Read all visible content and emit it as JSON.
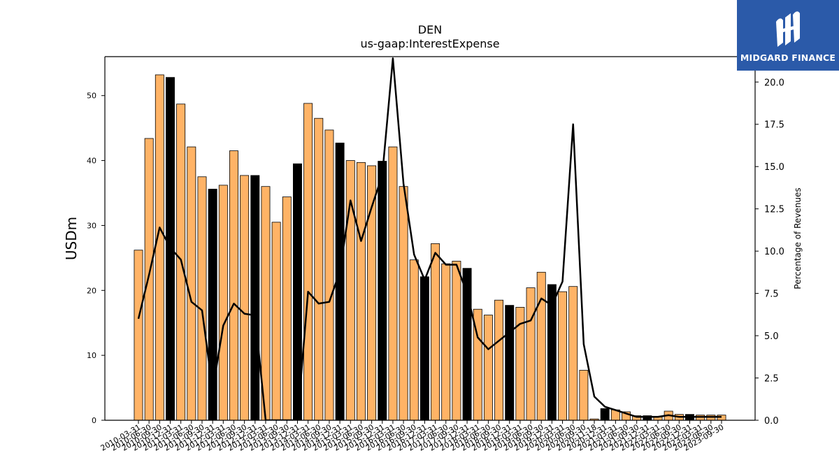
{
  "logo": {
    "text": "MIDGARD FINANCE"
  },
  "chart_data": {
    "type": "bar",
    "title": "DEN",
    "subtitle": "us-gaap:InterestExpense",
    "ylabel": "USDm",
    "y2label": "Percentage of Revenues",
    "ylim": [
      0,
      56
    ],
    "y2lim": [
      0,
      21.5
    ],
    "yticks": [
      0,
      10,
      20,
      30,
      40,
      50
    ],
    "y2ticks": [
      0.0,
      2.5,
      5.0,
      7.5,
      10.0,
      12.5,
      15.0,
      17.5,
      20.0
    ],
    "colors": {
      "bar": "#ffb366",
      "bar_q4": "#000000",
      "line": "#000000"
    },
    "categories": [
      "2010-03-31",
      "2010-06-30",
      "2010-09-30",
      "2010-12-31",
      "2011-03-31",
      "2011-06-30",
      "2011-09-30",
      "2011-12-31",
      "2012-03-31",
      "2012-06-30",
      "2012-09-30",
      "2012-12-31",
      "2013-03-31",
      "2013-06-30",
      "2013-09-30",
      "2013-12-31",
      "2014-03-31",
      "2014-06-30",
      "2014-09-30",
      "2014-12-31",
      "2015-03-31",
      "2015-06-30",
      "2015-09-30",
      "2015-12-31",
      "2016-03-31",
      "2016-06-30",
      "2016-09-30",
      "2016-12-31",
      "2017-03-31",
      "2017-06-30",
      "2017-09-30",
      "2017-12-31",
      "2018-03-31",
      "2018-06-30",
      "2018-09-30",
      "2018-12-31",
      "2019-03-31",
      "2019-06-30",
      "2019-09-30",
      "2019-12-31",
      "2020-03-31",
      "2020-06-30",
      "2020-09-30",
      "2020-11-18",
      "2020-12-31",
      "2021-03-31",
      "2021-06-30",
      "2021-09-30",
      "2021-12-31",
      "2022-03-31",
      "2022-06-30",
      "2022-09-30",
      "2022-12-31",
      "2023-03-31",
      "2023-06-30",
      "2023-09-30"
    ],
    "series": [
      {
        "values": [
          26.2,
          43.4,
          53.2,
          52.8,
          48.7,
          42.1,
          37.5,
          35.6,
          36.2,
          41.5,
          37.7,
          37.7,
          36.0,
          30.5,
          34.4,
          39.5,
          48.8,
          46.5,
          44.7,
          42.7,
          40.0,
          39.7,
          39.2,
          39.9,
          42.1,
          36.0,
          24.7,
          22.1,
          27.2,
          24.1,
          24.5,
          23.4,
          17.1,
          16.2,
          18.5,
          17.7,
          17.4,
          20.4,
          22.8,
          20.9,
          19.8,
          20.6,
          7.7,
          0.2,
          1.8,
          1.6,
          1.3,
          0.7,
          0.7,
          0.5,
          1.4,
          0.9,
          0.9,
          0.8,
          0.8,
          0.8
        ],
        "highlight": [
          false,
          false,
          false,
          true,
          false,
          false,
          false,
          true,
          false,
          false,
          false,
          true,
          false,
          false,
          false,
          true,
          false,
          false,
          false,
          true,
          false,
          false,
          false,
          true,
          false,
          false,
          false,
          true,
          false,
          false,
          false,
          true,
          false,
          false,
          false,
          true,
          false,
          false,
          false,
          true,
          false,
          false,
          false,
          false,
          true,
          false,
          false,
          false,
          true,
          false,
          false,
          false,
          true,
          false,
          false,
          false
        ]
      },
      {
        "axis": "right",
        "values": [
          6.0,
          8.6,
          11.4,
          10.2,
          9.5,
          7.0,
          6.5,
          1.8,
          5.6,
          6.9,
          6.3,
          6.2,
          0.0,
          0.0,
          0.0,
          0.0,
          7.6,
          6.9,
          7.0,
          8.8,
          13.0,
          10.6,
          12.6,
          14.5,
          21.4,
          14.0,
          9.8,
          8.3,
          9.9,
          9.2,
          9.2,
          7.5,
          4.9,
          4.2,
          4.7,
          5.2,
          5.7,
          5.9,
          7.2,
          6.8,
          8.2,
          17.5,
          4.5,
          1.4,
          0.8,
          0.6,
          0.4,
          0.2,
          0.2,
          0.2,
          0.3,
          0.2,
          0.2,
          0.2,
          0.2,
          0.2
        ]
      }
    ]
  }
}
